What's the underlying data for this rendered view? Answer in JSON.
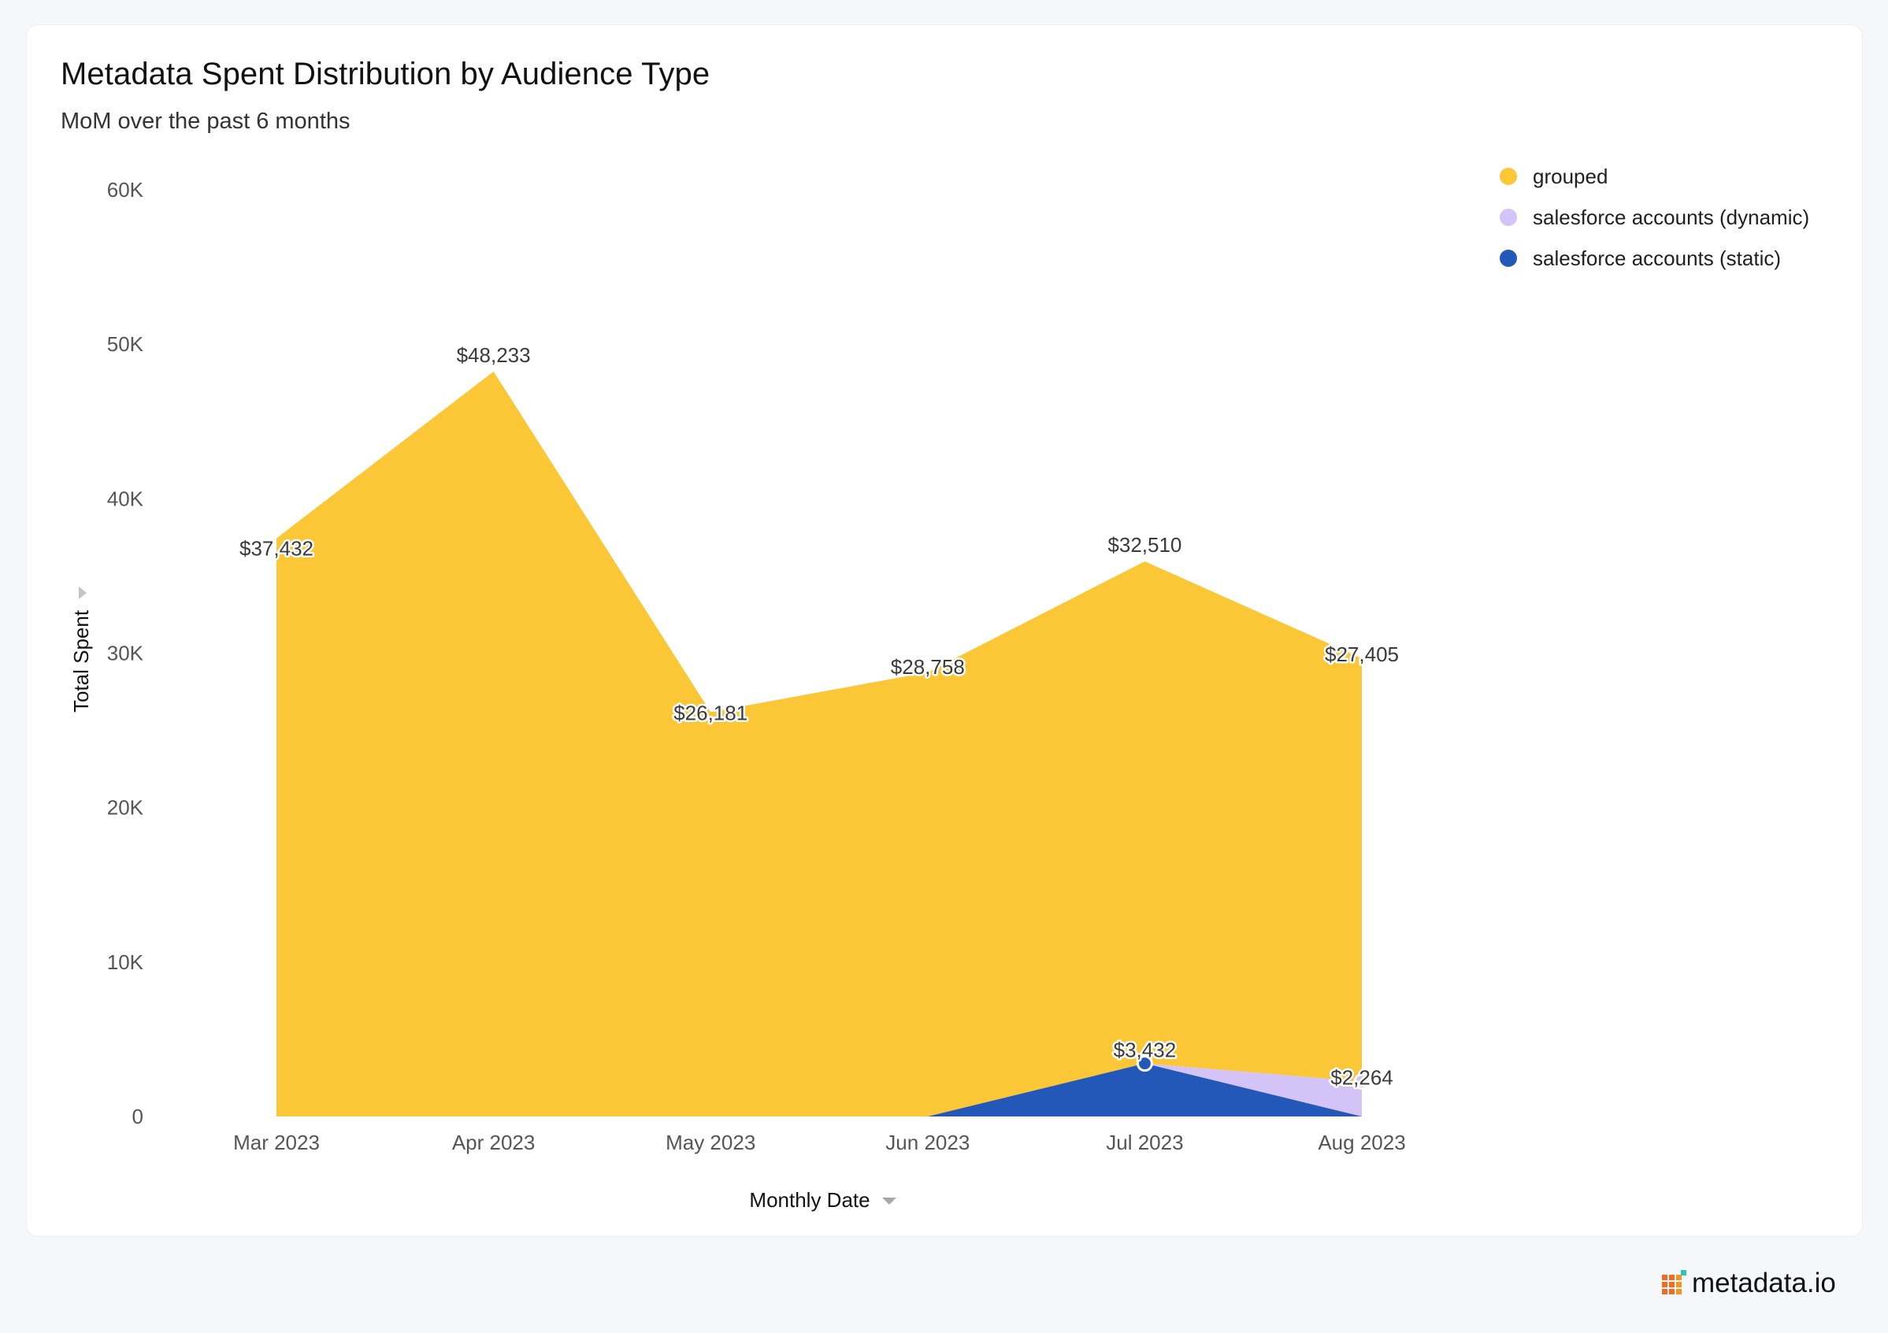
{
  "header": {
    "title": "Metadata Spent Distribution by Audience Type",
    "subtitle": "MoM over the past 6 months"
  },
  "brand": {
    "name": "metadata.io",
    "logo_colors": [
      "#f26b21",
      "#f7941d",
      "#2ec4b6"
    ]
  },
  "icons": {
    "y_axis_sort": "triangle-right-icon",
    "x_axis_sort": "triangle-down-icon"
  },
  "chart_data": {
    "type": "area",
    "stacked": true,
    "title": "Metadata Spent Distribution by Audience Type",
    "subtitle": "MoM over the past 6 months",
    "xlabel": "Monthly Date",
    "ylabel": "Total Spent",
    "categories": [
      "Mar 2023",
      "Apr 2023",
      "May 2023",
      "Jun 2023",
      "Jul 2023",
      "Aug 2023"
    ],
    "ylim": [
      0,
      60000
    ],
    "yticks": [
      0,
      10000,
      20000,
      30000,
      40000,
      50000,
      60000
    ],
    "ytick_labels": [
      "0",
      "10K",
      "20K",
      "30K",
      "40K",
      "50K",
      "60K"
    ],
    "grid": false,
    "legend_position": "top-right",
    "series": [
      {
        "name": "salesforce accounts (static)",
        "color": "#2458b8",
        "values": [
          0,
          0,
          0,
          0,
          3432,
          0
        ],
        "labels": [
          "",
          "",
          "",
          "",
          "$3,432",
          ""
        ]
      },
      {
        "name": "salesforce accounts (dynamic)",
        "color": "#d4c3f7",
        "values": [
          0,
          0,
          0,
          0,
          0,
          2264
        ],
        "labels": [
          "",
          "",
          "",
          "",
          "",
          "$2,264"
        ]
      },
      {
        "name": "grouped",
        "color": "#fbc737",
        "values": [
          37432,
          48233,
          26181,
          28758,
          32510,
          27405
        ],
        "labels": [
          "$37,432",
          "$48,233",
          "$26,181",
          "$28,758",
          "$32,510",
          "$27,405"
        ]
      }
    ],
    "legend_order": [
      "grouped",
      "salesforce accounts (dynamic)",
      "salesforce accounts (static)"
    ]
  }
}
